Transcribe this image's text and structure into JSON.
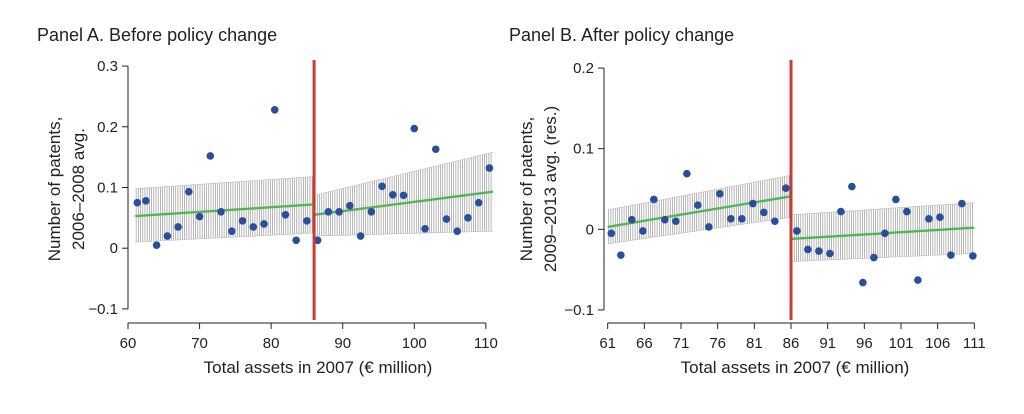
{
  "chart_data": [
    {
      "type": "scatter",
      "title": "Panel A. Before policy change",
      "xlabel": "Total assets in 2007 (€ million)",
      "ylabel": [
        "Number of patents,",
        "2006–2008 avg."
      ],
      "xlim": [
        60,
        111
      ],
      "ylim": [
        -0.115,
        0.31
      ],
      "xticks": [
        60,
        70,
        80,
        90,
        100,
        110
      ],
      "xtick_labels": [
        "60",
        "70",
        "80",
        "90",
        "100",
        "110"
      ],
      "yticks": [
        0.3,
        0.2,
        0.1,
        0,
        -0.1
      ],
      "ytick_labels": [
        "0.3",
        "0.2",
        "0.1",
        "0",
        "−0.1"
      ],
      "threshold": 86,
      "colors": {
        "points": "#2a4d9c",
        "fit": "#55b357",
        "threshold": "#cc3a33",
        "ci": "#9a9a9a"
      },
      "points": [
        {
          "x": 61.3,
          "y": 0.075
        },
        {
          "x": 62.5,
          "y": 0.078
        },
        {
          "x": 64.0,
          "y": 0.005
        },
        {
          "x": 65.5,
          "y": 0.02
        },
        {
          "x": 67.0,
          "y": 0.035
        },
        {
          "x": 68.5,
          "y": 0.093
        },
        {
          "x": 70.0,
          "y": 0.052
        },
        {
          "x": 71.5,
          "y": 0.152
        },
        {
          "x": 73.0,
          "y": 0.06
        },
        {
          "x": 74.5,
          "y": 0.028
        },
        {
          "x": 76.0,
          "y": 0.045
        },
        {
          "x": 77.5,
          "y": 0.035
        },
        {
          "x": 79.0,
          "y": 0.04
        },
        {
          "x": 80.5,
          "y": 0.228
        },
        {
          "x": 82.0,
          "y": 0.055
        },
        {
          "x": 83.5,
          "y": 0.013
        },
        {
          "x": 85.0,
          "y": 0.045
        },
        {
          "x": 86.5,
          "y": 0.013
        },
        {
          "x": 88.0,
          "y": 0.06
        },
        {
          "x": 89.5,
          "y": 0.06
        },
        {
          "x": 91.0,
          "y": 0.07
        },
        {
          "x": 92.5,
          "y": 0.02
        },
        {
          "x": 94.0,
          "y": 0.06
        },
        {
          "x": 95.5,
          "y": 0.102
        },
        {
          "x": 97.0,
          "y": 0.088
        },
        {
          "x": 98.5,
          "y": 0.087
        },
        {
          "x": 100.0,
          "y": 0.197
        },
        {
          "x": 101.5,
          "y": 0.032
        },
        {
          "x": 103.0,
          "y": 0.163
        },
        {
          "x": 104.5,
          "y": 0.048
        },
        {
          "x": 106.0,
          "y": 0.028
        },
        {
          "x": 107.5,
          "y": 0.05
        },
        {
          "x": 109.0,
          "y": 0.075
        },
        {
          "x": 110.5,
          "y": 0.132
        }
      ],
      "fits": [
        {
          "x": [
            61,
            86
          ],
          "y": [
            0.053,
            0.072
          ],
          "ci_lower": [
            0.01,
            0.025
          ],
          "ci_upper": [
            0.098,
            0.118
          ]
        },
        {
          "x": [
            86,
            111
          ],
          "y": [
            0.055,
            0.093
          ],
          "ci_lower": [
            0.02,
            0.028
          ],
          "ci_upper": [
            0.087,
            0.158
          ]
        }
      ]
    },
    {
      "type": "scatter",
      "title": "Panel B. After policy change",
      "xlabel": "Total assets in 2007 (€ million)",
      "ylabel": [
        "Number of patents,",
        "2009–2013 avg. (res.)"
      ],
      "xlim": [
        60.5,
        111.5
      ],
      "ylim": [
        -0.11,
        0.21
      ],
      "xticks": [
        61,
        66,
        71,
        76,
        81,
        86,
        91,
        96,
        101,
        106,
        111
      ],
      "xtick_labels": [
        "61",
        "66",
        "71",
        "76",
        "81",
        "86",
        "91",
        "96",
        "101",
        "106",
        "111"
      ],
      "yticks": [
        0.2,
        0.1,
        0,
        -0.1
      ],
      "ytick_labels": [
        "0.2",
        "0.1",
        "0",
        "−0.1"
      ],
      "threshold": 86,
      "colors": {
        "points": "#2a4d9c",
        "fit": "#55b357",
        "threshold": "#cc3a33",
        "ci": "#9a9a9a"
      },
      "points": [
        {
          "x": 61.5,
          "y": -0.005
        },
        {
          "x": 62.8,
          "y": -0.032
        },
        {
          "x": 64.3,
          "y": 0.012
        },
        {
          "x": 65.8,
          "y": -0.002
        },
        {
          "x": 67.3,
          "y": 0.037
        },
        {
          "x": 68.8,
          "y": 0.012
        },
        {
          "x": 70.3,
          "y": 0.01
        },
        {
          "x": 71.8,
          "y": 0.069
        },
        {
          "x": 73.3,
          "y": 0.03
        },
        {
          "x": 74.8,
          "y": 0.003
        },
        {
          "x": 76.3,
          "y": 0.044
        },
        {
          "x": 77.8,
          "y": 0.013
        },
        {
          "x": 79.3,
          "y": 0.013
        },
        {
          "x": 80.8,
          "y": 0.032
        },
        {
          "x": 82.3,
          "y": 0.021
        },
        {
          "x": 83.8,
          "y": 0.01
        },
        {
          "x": 85.3,
          "y": 0.051
        },
        {
          "x": 86.8,
          "y": -0.002
        },
        {
          "x": 88.3,
          "y": -0.025
        },
        {
          "x": 89.8,
          "y": -0.027
        },
        {
          "x": 91.3,
          "y": -0.03
        },
        {
          "x": 92.8,
          "y": 0.022
        },
        {
          "x": 94.3,
          "y": 0.053
        },
        {
          "x": 95.8,
          "y": -0.066
        },
        {
          "x": 97.3,
          "y": -0.035
        },
        {
          "x": 98.8,
          "y": -0.005
        },
        {
          "x": 100.3,
          "y": 0.037
        },
        {
          "x": 101.8,
          "y": 0.022
        },
        {
          "x": 103.3,
          "y": -0.063
        },
        {
          "x": 104.8,
          "y": 0.013
        },
        {
          "x": 106.3,
          "y": 0.015
        },
        {
          "x": 107.8,
          "y": -0.032
        },
        {
          "x": 109.3,
          "y": 0.032
        },
        {
          "x": 110.8,
          "y": -0.033
        }
      ],
      "fits": [
        {
          "x": [
            61,
            86
          ],
          "y": [
            0.003,
            0.041
          ],
          "ci_lower": [
            -0.018,
            0.015
          ],
          "ci_upper": [
            0.024,
            0.067
          ]
        },
        {
          "x": [
            86,
            111
          ],
          "y": [
            -0.012,
            0.002
          ],
          "ci_lower": [
            -0.04,
            -0.03
          ],
          "ci_upper": [
            0.018,
            0.033
          ]
        }
      ]
    }
  ]
}
